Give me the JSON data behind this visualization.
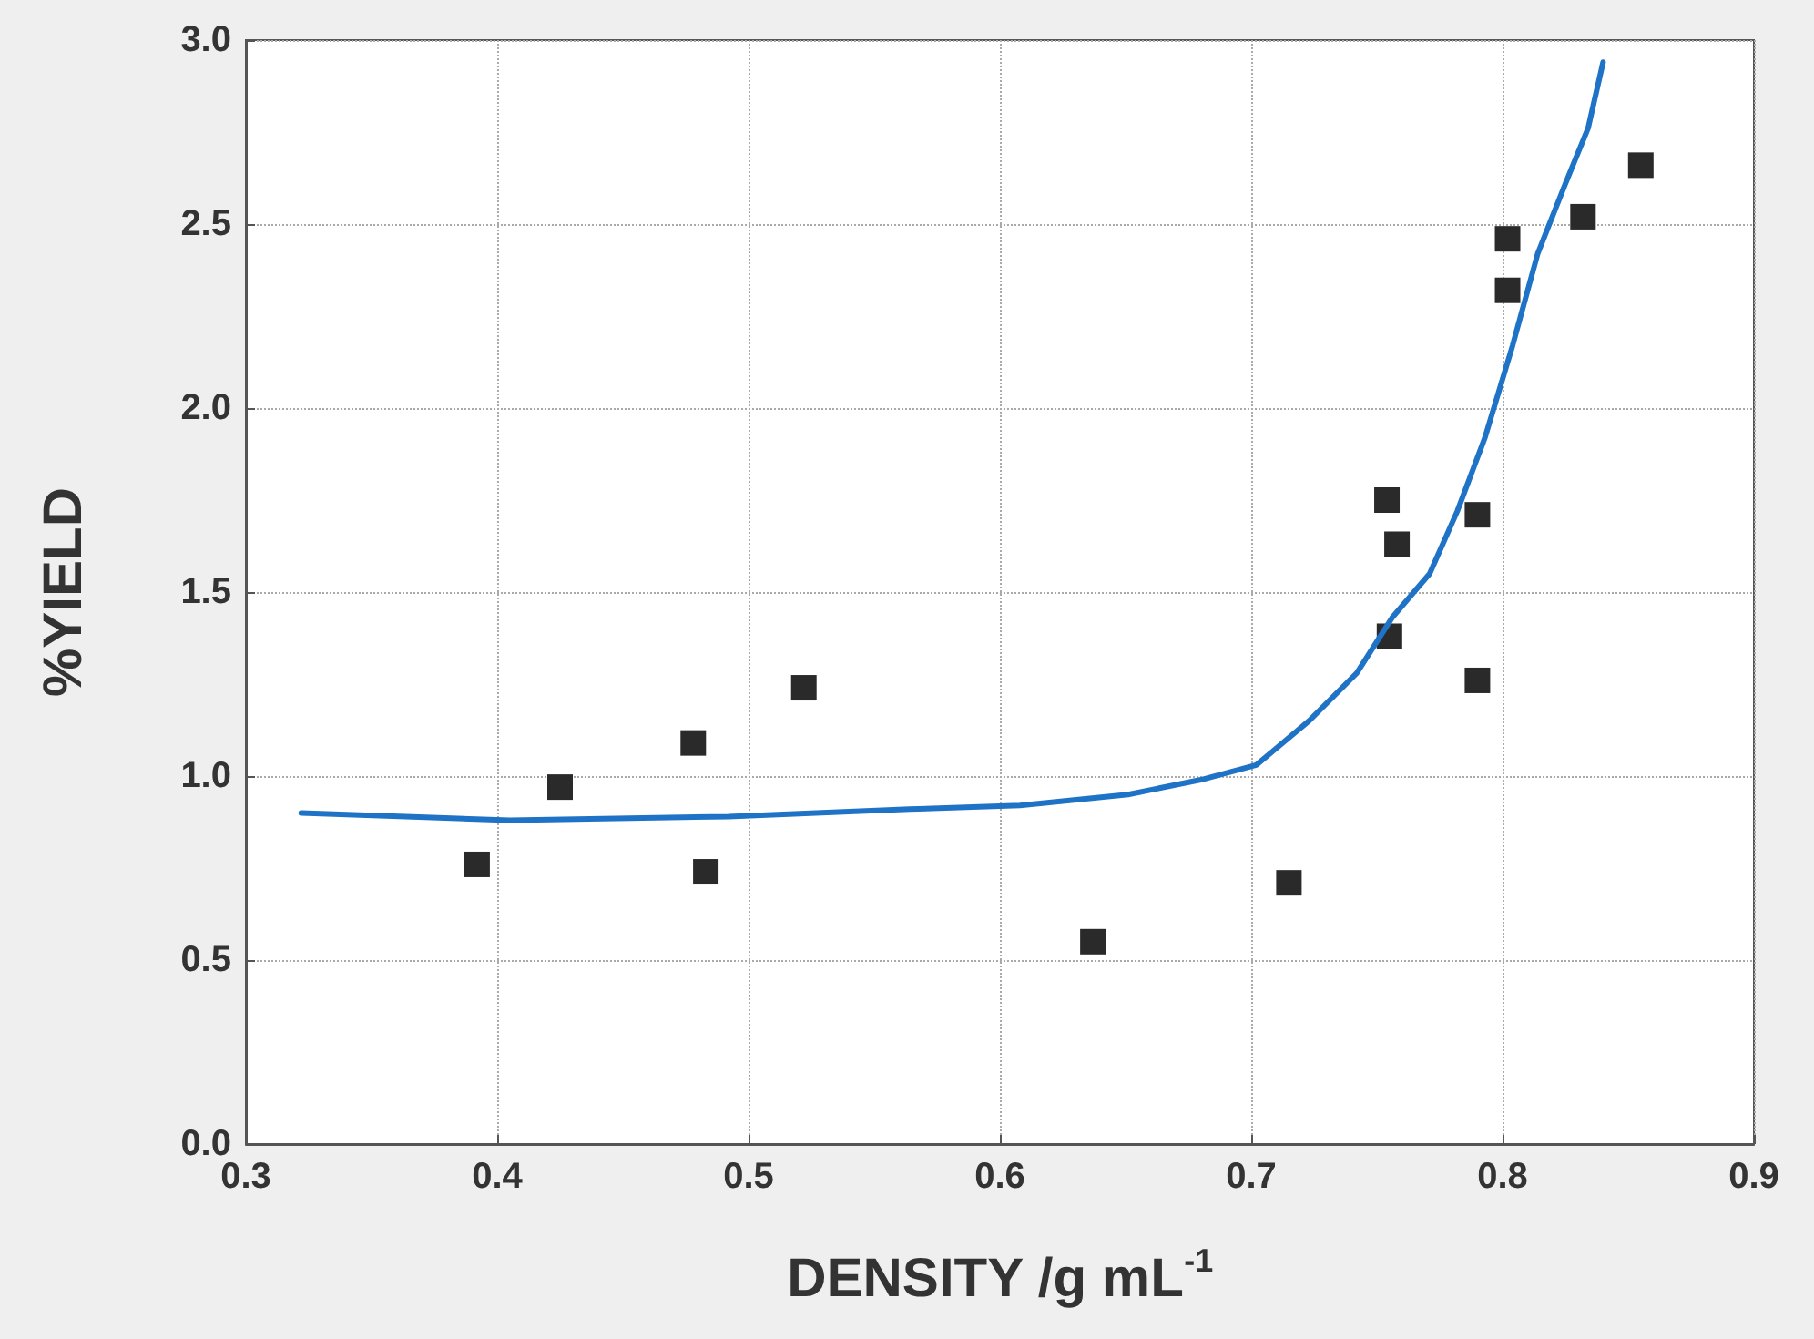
{
  "chart_data": {
    "type": "scatter",
    "xlabel": "DENSITY /g mL$^{-1}$",
    "ylabel": "%YIELD",
    "xlim": [
      0.3,
      0.9
    ],
    "xticks": [
      0.3,
      0.4,
      0.5,
      0.6,
      0.7,
      0.8,
      0.9
    ],
    "ylim": [
      0,
      3
    ],
    "yticks": [
      {
        "value": 0,
        "label": "0.0"
      },
      0.5,
      {
        "value": 1,
        "label": "1.0"
      },
      1.5,
      {
        "value": 2,
        "label": "2.0"
      },
      2.5,
      {
        "value": 3,
        "label": "3.0"
      }
    ],
    "grid": true,
    "series": [
      {
        "marker": "square",
        "color": "#2a2a2a",
        "x": [
          0.392,
          0.425,
          0.478,
          0.483,
          0.522,
          0.637,
          0.715,
          0.754,
          0.758,
          0.755,
          0.79,
          0.79,
          0.802,
          0.802,
          0.832,
          0.855
        ],
        "values": [
          0.76,
          0.97,
          1.09,
          0.74,
          1.24,
          0.55,
          0.71,
          1.75,
          1.63,
          1.38,
          1.71,
          1.26,
          2.46,
          2.32,
          2.52,
          2.66
        ]
      },
      {
        "type": "line",
        "marker": "none",
        "color": "#1f73c6",
        "x": [
          0.322,
          0.405,
          0.492,
          0.564,
          0.608,
          0.651,
          0.68,
          0.702,
          0.709,
          0.723,
          0.742,
          0.756,
          0.771,
          0.782,
          0.793,
          0.804,
          0.814,
          0.825,
          0.834,
          0.84
        ],
        "values": [
          0.9,
          0.88,
          0.89,
          0.91,
          0.92,
          0.95,
          0.99,
          1.03,
          1.07,
          1.15,
          1.28,
          1.43,
          1.55,
          1.72,
          1.92,
          2.17,
          2.42,
          2.61,
          2.76,
          2.94
        ]
      }
    ]
  }
}
